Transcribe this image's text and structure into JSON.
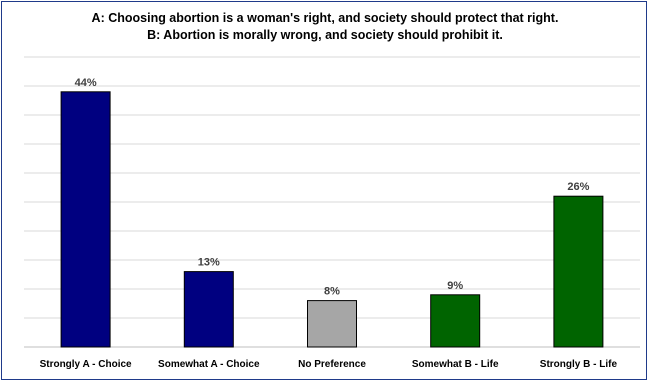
{
  "chart_data": {
    "type": "bar",
    "title_lines": [
      "A: Choosing abortion is a woman's right, and society should protect that right.",
      "B:  Abortion is morally wrong, and society should prohibit it."
    ],
    "categories": [
      "Strongly A - Choice",
      "Somewhat A - Choice",
      "No Preference",
      "Somewhat B - Life",
      "Strongly B - Life"
    ],
    "values": [
      44,
      13,
      8,
      9,
      26
    ],
    "data_labels": [
      "44%",
      "13%",
      "8%",
      "9%",
      "26%"
    ],
    "colors": [
      "#000080",
      "#000080",
      "#a6a6a6",
      "#006400",
      "#006400"
    ],
    "ylim": [
      0,
      50
    ],
    "grid": true,
    "legend": "none"
  }
}
